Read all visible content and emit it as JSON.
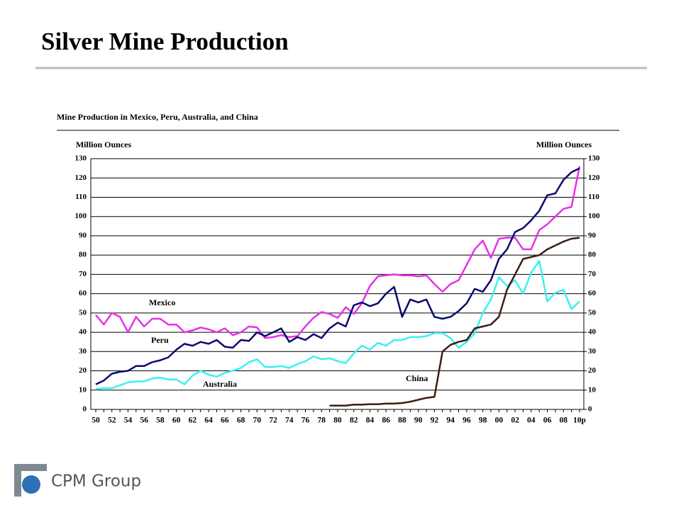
{
  "title": "Silver Mine Production",
  "logo": "CPM Group",
  "chart_data": {
    "type": "line",
    "title": "Mine Production in Mexico, Peru, Australia, and China",
    "ylabel": "Million Ounces",
    "y2label": "Million Ounces",
    "categories": [
      "50",
      null,
      "52",
      null,
      "54",
      null,
      "56",
      null,
      "58",
      null,
      "60",
      null,
      "62",
      null,
      "64",
      null,
      "66",
      null,
      "68",
      null,
      "70",
      null,
      "72",
      null,
      "74",
      null,
      "76",
      null,
      "78",
      null,
      "80",
      null,
      "82",
      null,
      "84",
      null,
      "86",
      null,
      "88",
      null,
      "90",
      null,
      "92",
      null,
      "94",
      null,
      "96",
      null,
      "98",
      null,
      "00",
      null,
      "02",
      null,
      "04",
      null,
      "06",
      null,
      "08",
      null,
      "10p"
    ],
    "ylim": [
      0,
      130
    ],
    "yticks": [
      0,
      10,
      20,
      30,
      40,
      50,
      60,
      70,
      80,
      90,
      100,
      110,
      120,
      130
    ],
    "y2lim": [
      0,
      130
    ],
    "y2ticks": [
      0,
      10,
      20,
      30,
      40,
      50,
      60,
      70,
      80,
      90,
      100,
      110,
      120,
      130
    ],
    "grid": true,
    "series": [
      {
        "name": "Mexico",
        "color": "#e632e6",
        "values": [
          49,
          44,
          50,
          48,
          40,
          48,
          43,
          47,
          47,
          44,
          44,
          40,
          41,
          42.5,
          41.5,
          40,
          42,
          38.5,
          40,
          43,
          42.5,
          37,
          37.5,
          38.5,
          37.5,
          38,
          43,
          47.5,
          50.5,
          49.5,
          47.5,
          53,
          49.5,
          55,
          64,
          69,
          69.5,
          70,
          69.5,
          69.5,
          69,
          69.5,
          65,
          61,
          65,
          67,
          75,
          83,
          87.5,
          78.5,
          88.5,
          89,
          89,
          83,
          83,
          93,
          96,
          100,
          104,
          105,
          126
        ]
      },
      {
        "name": "Peru",
        "color": "#0a0a6e",
        "values": [
          13,
          15,
          18.5,
          19.5,
          20,
          22.5,
          22.5,
          24.5,
          25.5,
          27,
          31,
          34,
          33,
          35,
          34,
          36,
          32.5,
          32,
          36,
          35.5,
          40,
          38,
          40,
          42,
          35,
          37.5,
          36,
          39,
          37,
          42,
          45,
          43,
          54,
          55.5,
          53.5,
          55,
          60,
          63.5,
          48,
          57,
          55.5,
          57,
          48,
          47,
          48,
          51,
          55,
          62.5,
          61,
          67,
          78,
          83,
          92,
          94,
          98,
          103,
          111,
          112,
          119,
          123,
          125
        ]
      },
      {
        "name": "Australia",
        "color": "#3cf0f0",
        "values": [
          10.5,
          11,
          11,
          12.5,
          14,
          14.5,
          14.5,
          16,
          16.5,
          15.5,
          15.5,
          13,
          17.5,
          20,
          18,
          17,
          19,
          20,
          21.5,
          24.5,
          26,
          22,
          22,
          22.5,
          21.5,
          23.5,
          25,
          27.5,
          26,
          26.5,
          25,
          24,
          29,
          33,
          31,
          34.5,
          33,
          36,
          36,
          37.5,
          37.5,
          38,
          39.5,
          39.5,
          37,
          32,
          35,
          39.5,
          50,
          57,
          68.5,
          64,
          67,
          60,
          71,
          77,
          56,
          60.5,
          62,
          52,
          56
        ]
      },
      {
        "name": "China",
        "color": "#3b1e14",
        "values": [
          null,
          null,
          null,
          null,
          null,
          null,
          null,
          null,
          null,
          null,
          null,
          null,
          null,
          null,
          null,
          null,
          null,
          null,
          null,
          null,
          null,
          null,
          null,
          null,
          null,
          null,
          null,
          null,
          null,
          2,
          2,
          2,
          2.5,
          2.5,
          2.7,
          2.7,
          3,
          3,
          3.3,
          4,
          5,
          6,
          6.5,
          30,
          33.5,
          35,
          36,
          42,
          43,
          44,
          48,
          62,
          70,
          78,
          79,
          80,
          83,
          85,
          87,
          88.5,
          89
        ]
      }
    ]
  }
}
